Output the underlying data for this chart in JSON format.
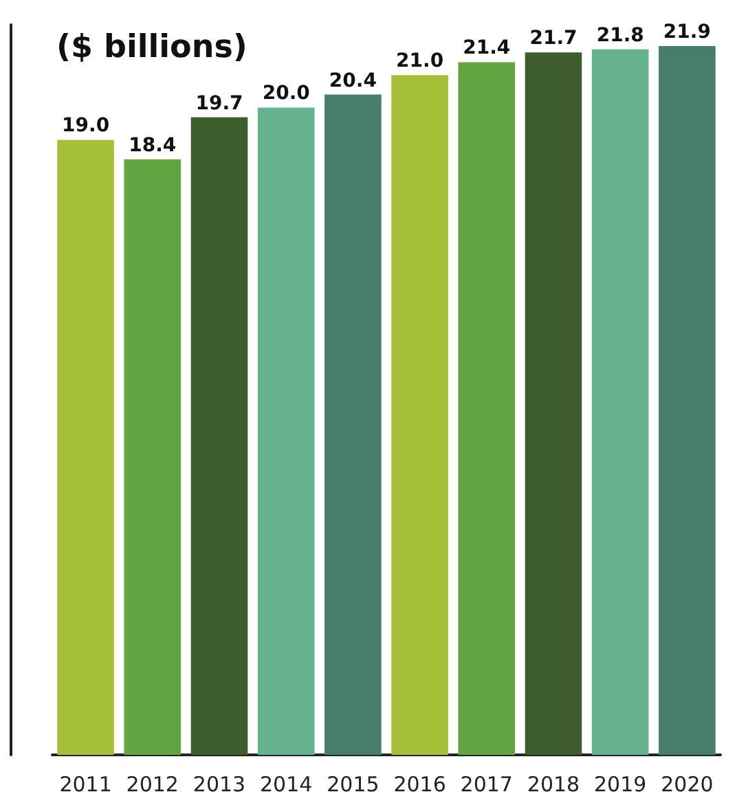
{
  "chart_data": {
    "type": "bar",
    "title": "($ billions)",
    "categories": [
      "2011",
      "2012",
      "2013",
      "2014",
      "2015",
      "2016",
      "2017",
      "2018",
      "2019",
      "2020"
    ],
    "values": [
      19.0,
      18.4,
      19.7,
      20.0,
      20.4,
      21.0,
      21.4,
      21.7,
      21.8,
      21.9
    ],
    "value_labels": [
      "19.0",
      "18.4",
      "19.7",
      "20.0",
      "20.4",
      "21.0",
      "21.4",
      "21.7",
      "21.8",
      "21.9"
    ],
    "colors": [
      "#a5bf38",
      "#64a543",
      "#3e5e2d",
      "#66b28f",
      "#467f69",
      "#a5bf38",
      "#64a543",
      "#3e5e2d",
      "#66b28f",
      "#467f69"
    ],
    "tick_labels": "x"
  }
}
